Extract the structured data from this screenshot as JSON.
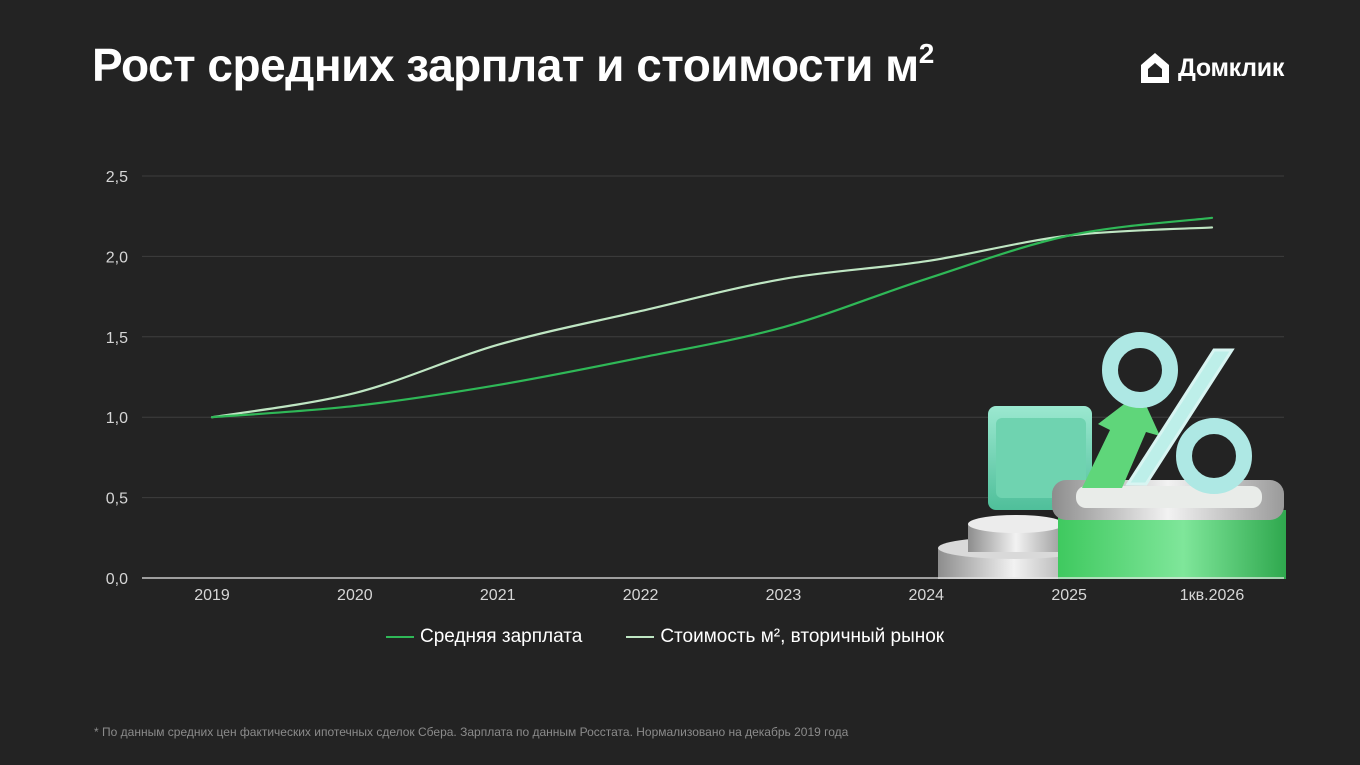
{
  "header": {
    "title": "Рост средних зарплат и стоимости м",
    "title_sup": "2",
    "logo_text": "Домклик"
  },
  "footnote": "* По данным средних цен фактических ипотечных сделок Сбера.  Зарплата по данным Росстата. Нормализовано на декабрь 2019 года",
  "colors": {
    "background": "#232323",
    "salary": "#2fb857",
    "price": "#bfe6c3",
    "grid": "#3e3e3e"
  },
  "chart_data": {
    "type": "line",
    "title": "Рост средних зарплат и стоимости м²",
    "x": [
      "2019",
      "2020",
      "2021",
      "2022",
      "2023",
      "2024",
      "2025",
      "1кв.2026"
    ],
    "ylim": [
      0,
      2.5
    ],
    "yticks": [
      "0,0",
      "0,5",
      "1,0",
      "1,5",
      "2,0",
      "2,5"
    ],
    "ytick_values": [
      0,
      0.5,
      1.0,
      1.5,
      2.0,
      2.5
    ],
    "grid": true,
    "legend_position": "bottom-center",
    "series": [
      {
        "name": "Средняя зарплата",
        "values": [
          1.0,
          1.07,
          1.2,
          1.37,
          1.56,
          1.86,
          2.13,
          2.24
        ],
        "color": "#2fb857"
      },
      {
        "name": "Стоимость м², вторичный рынок",
        "values": [
          1.0,
          1.15,
          1.45,
          1.66,
          1.86,
          1.97,
          2.13,
          2.18
        ],
        "color": "#bfe6c3"
      }
    ]
  }
}
